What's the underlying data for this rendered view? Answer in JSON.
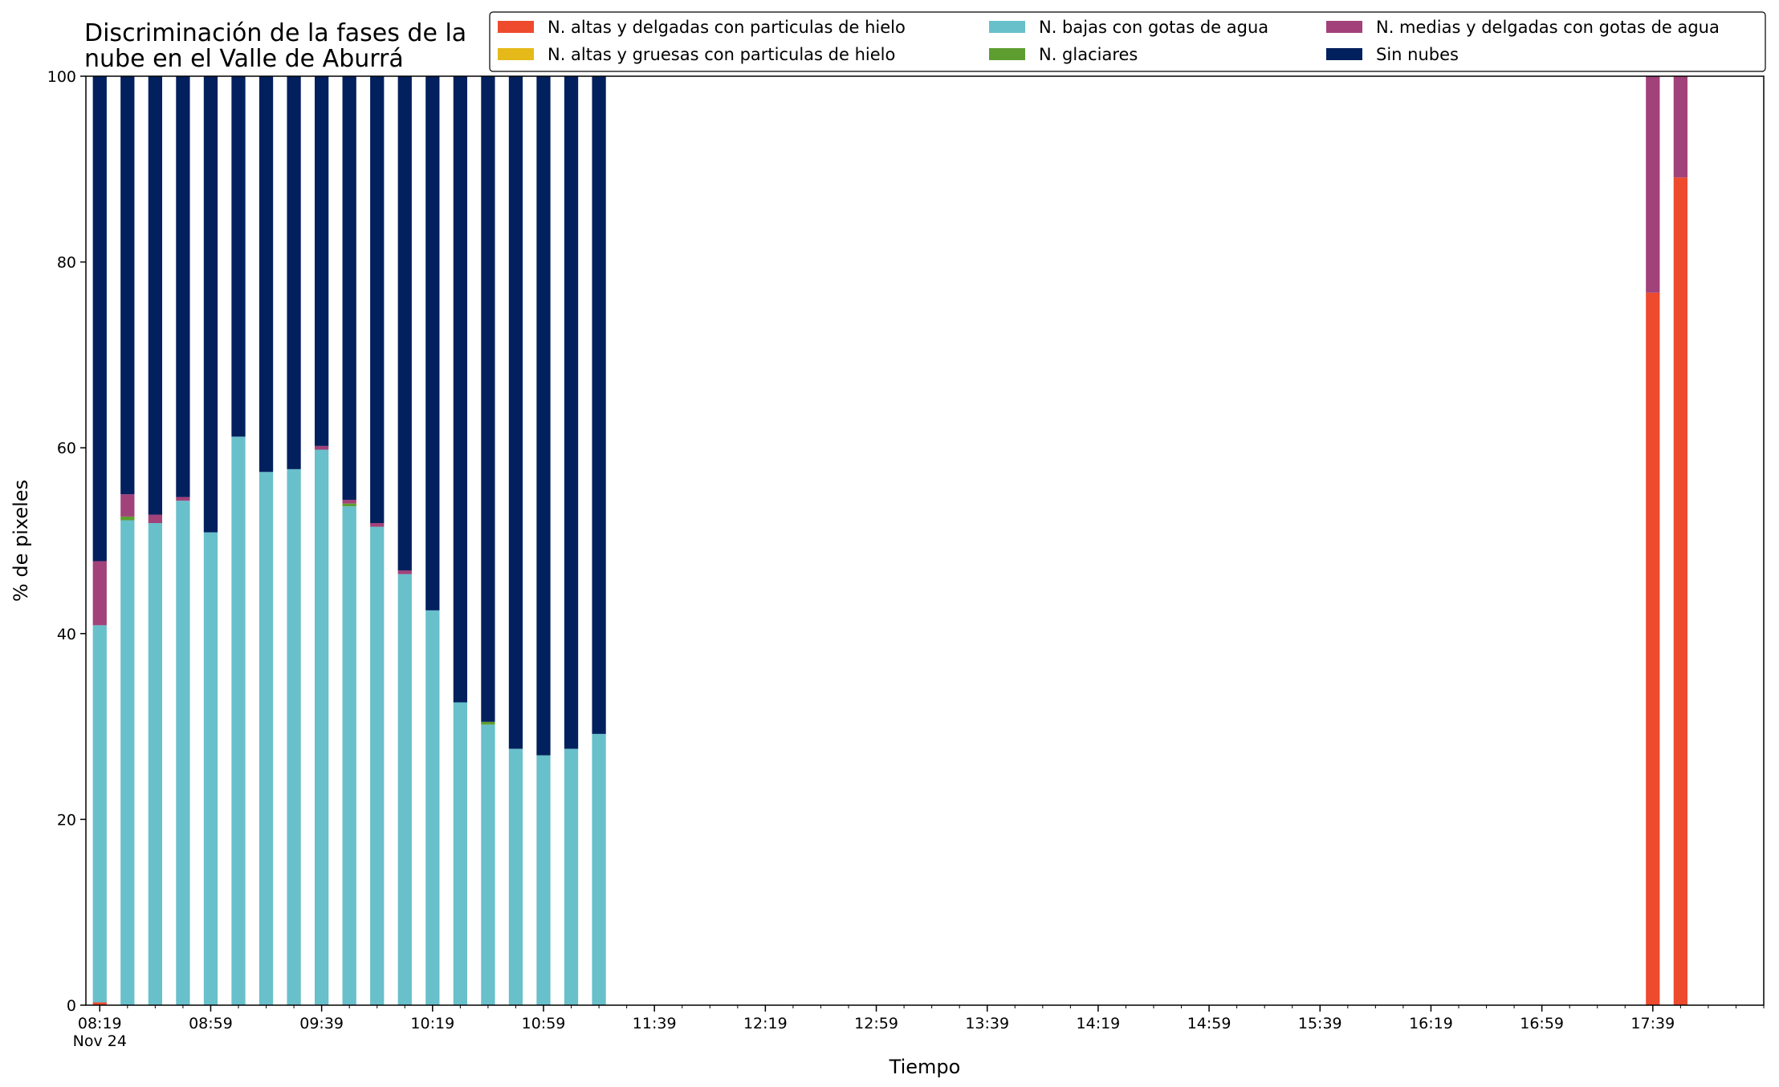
{
  "chart_data": {
    "type": "bar",
    "stacked": true,
    "title_lines": [
      "Discriminación de la fases de la",
      "nube en el Valle de Aburrá"
    ],
    "xlabel": "Tiempo",
    "ylabel": "% de pixeles",
    "ylim": [
      0,
      100
    ],
    "yticks": [
      0,
      20,
      40,
      60,
      80,
      100
    ],
    "xlim": [
      "08:14",
      "18:19"
    ],
    "date_label": "Nov 24",
    "major_ticks": [
      "08:19",
      "08:59",
      "09:39",
      "10:19",
      "10:59",
      "11:39",
      "12:19",
      "12:59",
      "13:39",
      "14:19",
      "14:59",
      "15:39",
      "16:19",
      "16:59",
      "17:39"
    ],
    "minor_tick_step_minutes": 10,
    "bar_width_minutes": 5,
    "legend_position": "top-right",
    "legend_columns": 3,
    "grid": false,
    "times": [
      "08:19",
      "08:29",
      "08:39",
      "08:49",
      "08:59",
      "09:09",
      "09:19",
      "09:29",
      "09:39",
      "09:49",
      "09:59",
      "10:09",
      "10:19",
      "10:29",
      "10:39",
      "10:49",
      "10:59",
      "11:09",
      "11:19",
      "17:39",
      "17:49"
    ],
    "series": [
      {
        "name": "N. altas y delgadas con particulas de hielo",
        "color": "#ee4a2e",
        "values": [
          0.3,
          0,
          0,
          0,
          0,
          0,
          0,
          0,
          0,
          0,
          0,
          0,
          0,
          0,
          0,
          0,
          0,
          0,
          0,
          76.7,
          89.1
        ]
      },
      {
        "name": "N. altas y gruesas con particulas de hielo",
        "color": "#e5b91a",
        "values": [
          0,
          0,
          0,
          0,
          0,
          0,
          0,
          0,
          0,
          0,
          0,
          0,
          0,
          0,
          0,
          0,
          0,
          0,
          0,
          0,
          0
        ]
      },
      {
        "name": "N. bajas con gotas de agua",
        "color": "#68c0cb",
        "values": [
          40.6,
          52.2,
          51.9,
          54.3,
          50.9,
          61.2,
          57.4,
          57.7,
          59.8,
          53.7,
          51.5,
          46.4,
          42.5,
          32.6,
          30.2,
          27.6,
          26.9,
          27.6,
          29.2,
          0,
          0
        ]
      },
      {
        "name": "N. glaciares",
        "color": "#5e9e30",
        "values": [
          0,
          0.4,
          0,
          0,
          0,
          0,
          0,
          0,
          0,
          0.3,
          0,
          0,
          0,
          0,
          0.3,
          0,
          0,
          0,
          0,
          0,
          0
        ]
      },
      {
        "name": "N. medias y delgadas con gotas de agua",
        "color": "#a1427a",
        "values": [
          6.9,
          2.4,
          0.9,
          0.4,
          0,
          0,
          0,
          0,
          0.4,
          0.4,
          0.4,
          0.4,
          0,
          0,
          0,
          0,
          0,
          0,
          0,
          23.3,
          10.9
        ]
      },
      {
        "name": "Sin nubes",
        "color": "#03205e",
        "values": [
          52.2,
          45.0,
          47.2,
          45.3,
          49.1,
          38.8,
          42.6,
          42.3,
          39.8,
          45.6,
          48.1,
          53.2,
          57.5,
          67.4,
          69.5,
          72.4,
          73.1,
          72.4,
          70.8,
          0,
          0
        ]
      }
    ]
  }
}
